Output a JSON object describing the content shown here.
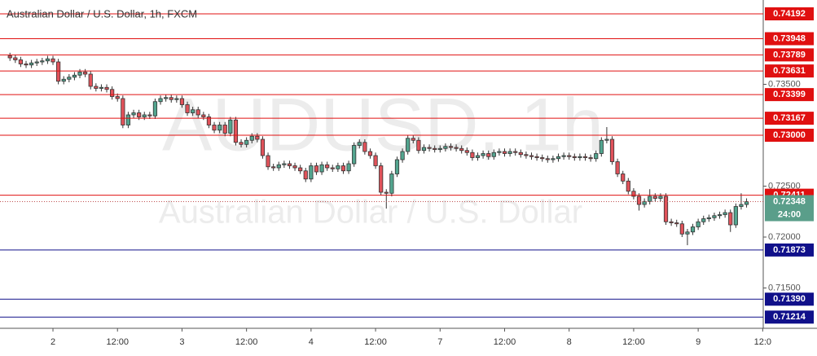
{
  "chart_data": {
    "type": "candlestick",
    "title": "Australian Dollar / U.S. Dollar, 1h, FXCM",
    "watermark": "AUDUSD, 1h",
    "watermark_subtitle": "Australian Dollar / U.S. Dollar",
    "up_color": "#53a58f",
    "down_color": "#e0525a",
    "x": [
      -8,
      -7,
      -6,
      -5,
      -4,
      -3,
      -2,
      -1,
      0,
      1,
      2,
      3,
      4,
      5,
      6,
      7,
      8,
      9,
      10,
      11,
      12,
      13,
      14,
      15,
      16,
      17,
      18,
      19,
      20,
      21,
      22,
      23,
      24,
      25,
      26,
      27,
      28,
      29,
      30,
      31,
      32,
      33,
      34,
      35,
      36,
      37,
      38,
      39,
      40,
      41,
      42,
      43,
      44,
      45,
      46,
      47,
      48,
      49,
      50,
      51,
      52,
      53,
      54,
      55,
      56,
      57,
      58,
      59,
      60,
      61,
      62,
      63,
      64,
      65,
      66,
      67,
      68,
      69,
      70,
      71,
      72,
      73,
      74,
      75,
      76,
      77,
      78,
      79,
      80,
      81,
      82,
      83,
      84,
      85,
      86,
      87,
      88,
      89,
      90,
      91,
      92,
      93,
      94,
      95,
      96,
      97,
      98,
      99,
      100,
      101,
      102,
      103,
      104,
      105,
      106,
      107,
      108,
      109,
      110,
      111,
      112,
      113,
      114,
      115,
      116,
      117,
      118,
      119,
      120,
      121,
      122,
      123,
      124,
      125,
      126,
      127,
      128,
      129
    ],
    "open": [
      0.7378,
      0.7376,
      0.7374,
      0.737,
      0.7369,
      0.7371,
      0.7372,
      0.7373,
      0.7375,
      0.7372,
      0.7353,
      0.7355,
      0.7357,
      0.7359,
      0.7362,
      0.736,
      0.7348,
      0.7346,
      0.7347,
      0.7345,
      0.7338,
      0.7336,
      0.731,
      0.732,
      0.7322,
      0.7318,
      0.732,
      0.7319,
      0.7333,
      0.7336,
      0.7337,
      0.7335,
      0.7336,
      0.733,
      0.7322,
      0.7325,
      0.732,
      0.7318,
      0.731,
      0.7305,
      0.731,
      0.7302,
      0.7315,
      0.7293,
      0.7291,
      0.7295,
      0.7299,
      0.7296,
      0.728,
      0.7269,
      0.7268,
      0.7271,
      0.7272,
      0.727,
      0.7268,
      0.7265,
      0.7257,
      0.727,
      0.7264,
      0.7271,
      0.7268,
      0.7267,
      0.727,
      0.7265,
      0.7272,
      0.729,
      0.7293,
      0.7284,
      0.728,
      0.727,
      0.7244,
      0.7243,
      0.7262,
      0.7276,
      0.7284,
      0.7297,
      0.7295,
      0.7285,
      0.7288,
      0.7287,
      0.7286,
      0.7287,
      0.7289,
      0.7288,
      0.7287,
      0.7285,
      0.7283,
      0.7278,
      0.728,
      0.7282,
      0.7279,
      0.7283,
      0.7284,
      0.7282,
      0.7284,
      0.7283,
      0.7281,
      0.728,
      0.7279,
      0.7278,
      0.7277,
      0.7276,
      0.7277,
      0.7279,
      0.728,
      0.7279,
      0.7278,
      0.7279,
      0.7278,
      0.7277,
      0.7282,
      0.7295,
      0.7296,
      0.7274,
      0.7262,
      0.7255,
      0.7245,
      0.724,
      0.7232,
      0.7235,
      0.724,
      0.7238,
      0.724,
      0.7215,
      0.7214,
      0.7213,
      0.7203,
      0.7205,
      0.721,
      0.7215,
      0.7218,
      0.7219,
      0.7221,
      0.7222,
      0.7224,
      0.7212,
      0.723,
      0.7232
    ],
    "high": [
      0.7381,
      0.7379,
      0.7377,
      0.7373,
      0.7374,
      0.7375,
      0.7376,
      0.7378,
      0.7378,
      0.7375,
      0.7358,
      0.736,
      0.7362,
      0.7365,
      0.7365,
      0.7363,
      0.7351,
      0.735,
      0.735,
      0.7348,
      0.7341,
      0.7339,
      0.7323,
      0.7325,
      0.7325,
      0.7323,
      0.7323,
      0.7336,
      0.7339,
      0.734,
      0.734,
      0.7339,
      0.7339,
      0.7333,
      0.7328,
      0.7328,
      0.7323,
      0.7321,
      0.7313,
      0.7313,
      0.7313,
      0.7318,
      0.7318,
      0.7296,
      0.7298,
      0.7302,
      0.7302,
      0.7299,
      0.7283,
      0.7272,
      0.7274,
      0.7275,
      0.7275,
      0.7273,
      0.7271,
      0.7268,
      0.7273,
      0.7273,
      0.7274,
      0.7274,
      0.7271,
      0.7273,
      0.7273,
      0.7275,
      0.7293,
      0.7296,
      0.7296,
      0.7287,
      0.7283,
      0.7273,
      0.7247,
      0.7265,
      0.7279,
      0.7287,
      0.73,
      0.73,
      0.7298,
      0.7291,
      0.7291,
      0.729,
      0.729,
      0.7292,
      0.7292,
      0.7291,
      0.729,
      0.7288,
      0.7286,
      0.7283,
      0.7285,
      0.7285,
      0.7286,
      0.7287,
      0.7287,
      0.7287,
      0.7287,
      0.7286,
      0.7284,
      0.7283,
      0.7282,
      0.7281,
      0.728,
      0.728,
      0.7282,
      0.7283,
      0.7283,
      0.7282,
      0.7282,
      0.7282,
      0.7281,
      0.7285,
      0.7298,
      0.7308,
      0.7299,
      0.7277,
      0.7265,
      0.7258,
      0.7248,
      0.7243,
      0.7238,
      0.7247,
      0.7243,
      0.7243,
      0.7243,
      0.7218,
      0.7217,
      0.7216,
      0.7208,
      0.7213,
      0.7218,
      0.7221,
      0.7222,
      0.7224,
      0.7225,
      0.7227,
      0.7227,
      0.7233,
      0.7243,
      0.7238
    ],
    "low": [
      0.7373,
      0.7371,
      0.7367,
      0.7366,
      0.7366,
      0.7368,
      0.7369,
      0.737,
      0.7369,
      0.735,
      0.735,
      0.7352,
      0.7354,
      0.7356,
      0.7357,
      0.7345,
      0.7343,
      0.7343,
      0.7342,
      0.7335,
      0.7333,
      0.7307,
      0.7307,
      0.7317,
      0.7315,
      0.7315,
      0.7316,
      0.7316,
      0.733,
      0.7333,
      0.7332,
      0.7332,
      0.7327,
      0.7319,
      0.7319,
      0.7317,
      0.7315,
      0.7307,
      0.7302,
      0.7302,
      0.7299,
      0.7299,
      0.729,
      0.7288,
      0.7288,
      0.7292,
      0.7293,
      0.7277,
      0.7266,
      0.7265,
      0.7265,
      0.7268,
      0.7267,
      0.7265,
      0.7262,
      0.7254,
      0.7254,
      0.7261,
      0.7261,
      0.7265,
      0.7264,
      0.7264,
      0.7262,
      0.7262,
      0.7269,
      0.7287,
      0.7281,
      0.7277,
      0.7267,
      0.7241,
      0.7228,
      0.724,
      0.7259,
      0.7273,
      0.7281,
      0.7292,
      0.7282,
      0.7282,
      0.7284,
      0.7283,
      0.7283,
      0.7284,
      0.7285,
      0.7284,
      0.7282,
      0.728,
      0.7275,
      0.7275,
      0.7277,
      0.7276,
      0.7276,
      0.728,
      0.7279,
      0.7279,
      0.728,
      0.7278,
      0.7277,
      0.7276,
      0.7275,
      0.7274,
      0.7273,
      0.7273,
      0.7274,
      0.7276,
      0.7276,
      0.7275,
      0.7275,
      0.7275,
      0.7274,
      0.7274,
      0.7279,
      0.7292,
      0.7271,
      0.7259,
      0.7252,
      0.7242,
      0.7237,
      0.7226,
      0.7229,
      0.7232,
      0.7235,
      0.7235,
      0.7212,
      0.7211,
      0.721,
      0.72,
      0.7192,
      0.7202,
      0.7207,
      0.7212,
      0.7215,
      0.7216,
      0.7218,
      0.7219,
      0.7205,
      0.7209,
      0.7227,
      0.7229
    ],
    "close": [
      0.7376,
      0.7374,
      0.737,
      0.7369,
      0.7371,
      0.7372,
      0.7373,
      0.7375,
      0.7372,
      0.7353,
      0.7355,
      0.7357,
      0.7359,
      0.7362,
      0.736,
      0.7348,
      0.7346,
      0.7347,
      0.7345,
      0.7338,
      0.7336,
      0.731,
      0.732,
      0.7322,
      0.7318,
      0.732,
      0.7319,
      0.7333,
      0.7336,
      0.7337,
      0.7335,
      0.7336,
      0.733,
      0.7322,
      0.7325,
      0.732,
      0.7318,
      0.731,
      0.7305,
      0.731,
      0.7302,
      0.7315,
      0.7293,
      0.7291,
      0.7295,
      0.7299,
      0.7296,
      0.728,
      0.7269,
      0.7268,
      0.7271,
      0.7272,
      0.727,
      0.7268,
      0.7265,
      0.7257,
      0.727,
      0.7264,
      0.7271,
      0.7268,
      0.7267,
      0.727,
      0.7265,
      0.7272,
      0.729,
      0.7293,
      0.7284,
      0.728,
      0.727,
      0.7244,
      0.7243,
      0.7262,
      0.7276,
      0.7284,
      0.7297,
      0.7295,
      0.7285,
      0.7288,
      0.7287,
      0.7286,
      0.7287,
      0.7289,
      0.7288,
      0.7287,
      0.7285,
      0.7283,
      0.7278,
      0.728,
      0.7282,
      0.7279,
      0.7283,
      0.7284,
      0.7282,
      0.7284,
      0.7283,
      0.7281,
      0.728,
      0.7279,
      0.7278,
      0.7277,
      0.7276,
      0.7277,
      0.7279,
      0.728,
      0.7279,
      0.7278,
      0.7279,
      0.7278,
      0.7277,
      0.7282,
      0.7295,
      0.7296,
      0.7274,
      0.7262,
      0.7255,
      0.7245,
      0.724,
      0.7232,
      0.7235,
      0.724,
      0.7238,
      0.724,
      0.7215,
      0.7214,
      0.7213,
      0.7203,
      0.7205,
      0.721,
      0.7215,
      0.7218,
      0.7219,
      0.7221,
      0.7222,
      0.7224,
      0.7212,
      0.723,
      0.7232,
      0.72348
    ],
    "xlim": [
      -9.85,
      132.1
    ],
    "ylim": [
      0.71104,
      0.74328
    ],
    "xticks": [
      {
        "value": 0,
        "label": "2"
      },
      {
        "value": 12,
        "label": "12:00"
      },
      {
        "value": 24,
        "label": "3"
      },
      {
        "value": 36,
        "label": "12:00"
      },
      {
        "value": 48,
        "label": "4"
      },
      {
        "value": 60,
        "label": "12:00"
      },
      {
        "value": 72,
        "label": "7"
      },
      {
        "value": 84,
        "label": "12:00"
      },
      {
        "value": 96,
        "label": "8"
      },
      {
        "value": 108,
        "label": "12:00"
      },
      {
        "value": 120,
        "label": "9"
      },
      {
        "value": 132,
        "label": "12:0"
      }
    ],
    "yticks": [
      {
        "value": 0.715,
        "label": "0.71500"
      },
      {
        "value": 0.72,
        "label": "0.72000"
      },
      {
        "value": 0.725,
        "label": "0.72500"
      },
      {
        "value": 0.735,
        "label": "0.73500"
      }
    ],
    "levels": [
      {
        "value": 0.74192,
        "label": "0.74192",
        "color": "#e01010"
      },
      {
        "value": 0.73948,
        "label": "0.73948",
        "color": "#e01010"
      },
      {
        "value": 0.73789,
        "label": "0.73789",
        "color": "#e01010"
      },
      {
        "value": 0.73631,
        "label": "0.73631",
        "color": "#e01010"
      },
      {
        "value": 0.73399,
        "label": "0.73399",
        "color": "#e01010"
      },
      {
        "value": 0.73167,
        "label": "0.73167",
        "color": "#e01010"
      },
      {
        "value": 0.73,
        "label": "0.73000",
        "color": "#e01010"
      },
      {
        "value": 0.72411,
        "label": "0.72411",
        "color": "#e01010"
      },
      {
        "value": 0.71873,
        "label": "0.71873",
        "color": "#10108a"
      },
      {
        "value": 0.7139,
        "label": "0.71390",
        "color": "#10108a"
      },
      {
        "value": 0.71214,
        "label": "0.71214",
        "color": "#10108a"
      }
    ],
    "current_price": {
      "value": 0.72348,
      "label": "0.72348",
      "color": "#5a9e8a"
    },
    "countdown": "24:00"
  }
}
